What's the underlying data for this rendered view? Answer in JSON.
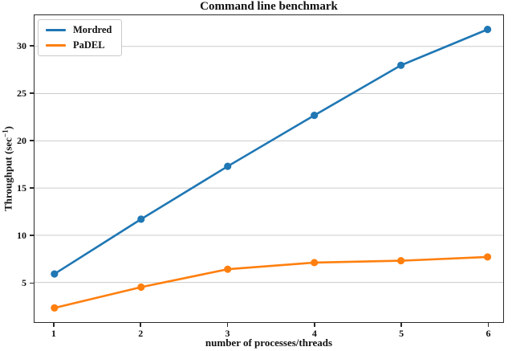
{
  "figure": {
    "title": "Command line benchmark",
    "xlabel": "number of processes/threads",
    "ylabel_parts": {
      "pre": "Throughput (sec",
      "sup": "−1",
      "post": ")"
    }
  },
  "chart_data": {
    "type": "line",
    "title": "Command line benchmark",
    "xlabel": "number of processes/threads",
    "ylabel": "Throughput (sec⁻¹)",
    "x": [
      1,
      2,
      3,
      4,
      5,
      6
    ],
    "series": [
      {
        "name": "Mordred",
        "color": "#1f77b4",
        "values": [
          5.9,
          11.7,
          17.3,
          22.7,
          28.0,
          31.8
        ]
      },
      {
        "name": "PaDEL",
        "color": "#ff7f0e",
        "values": [
          2.3,
          4.5,
          6.4,
          7.1,
          7.3,
          7.7
        ]
      }
    ],
    "xticks": [
      1,
      2,
      3,
      4,
      5,
      6
    ],
    "yticks": [
      5,
      10,
      15,
      20,
      25,
      30
    ],
    "xlim": [
      0.77,
      6.18
    ],
    "ylim": [
      0.8,
      33.3
    ],
    "grid": "horizontal",
    "grid_color": "#cccccc",
    "legend_position": "upper-left"
  }
}
